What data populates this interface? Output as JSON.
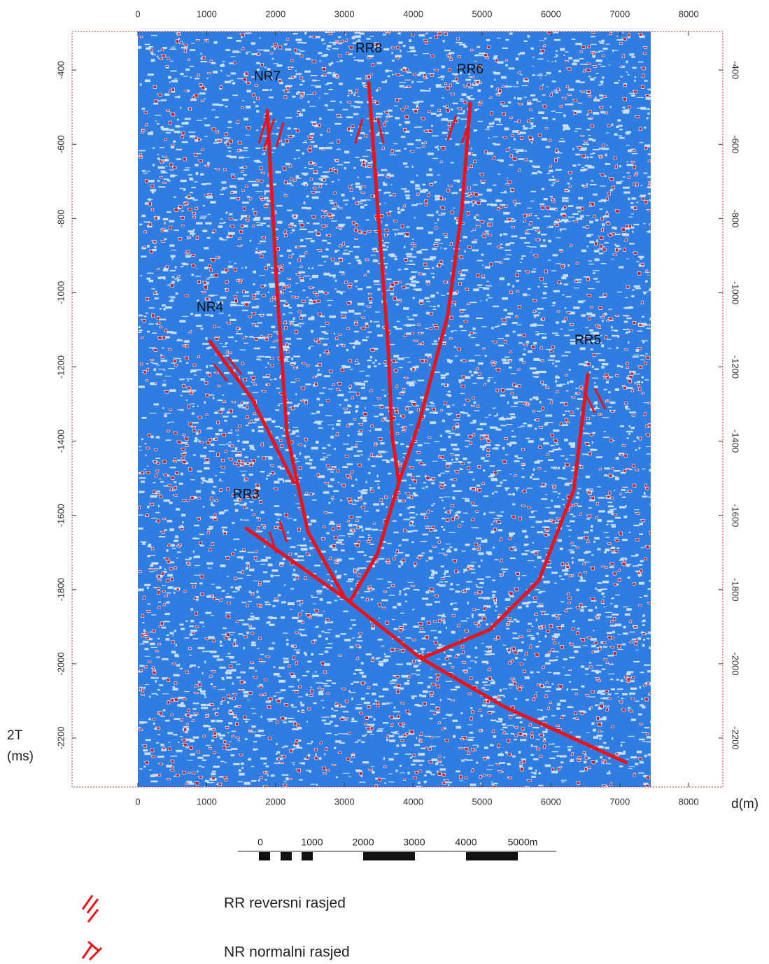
{
  "chart_data": {
    "type": "line",
    "x_label": "d(m)",
    "y_label_lines": [
      "2T",
      "(ms)"
    ],
    "xlim": [
      -955,
      8496
    ],
    "ylim": [
      -296,
      -2332
    ],
    "xticks": [
      0,
      1000,
      2000,
      3000,
      4000,
      5000,
      6000,
      7000,
      8000
    ],
    "yticks": [
      -400,
      -600,
      -800,
      -1000,
      -1200,
      -1400,
      -1600,
      -1800,
      -2000,
      -2200
    ],
    "series": [
      {
        "name": "NR7",
        "color": "#e8141c",
        "x": [
          1880,
          2012,
          2165,
          2470,
          3008
        ],
        "values": [
          -509,
          -966,
          -1380,
          -1644,
          -1823
        ]
      },
      {
        "name": "RR8",
        "color": "#e8141c",
        "x": [
          3354,
          3486,
          3638,
          3689,
          3791
        ],
        "values": [
          -434,
          -777,
          -1154,
          -1380,
          -1512
        ]
      },
      {
        "name": "RR6",
        "color": "#e8141c",
        "x": [
          4827,
          4705,
          4502,
          4096,
          3791,
          3486,
          3079
        ],
        "values": [
          -490,
          -777,
          -1060,
          -1343,
          -1512,
          -1701,
          -1833
        ]
      },
      {
        "name": "NR4",
        "color": "#e8141c",
        "x": [
          1047,
          1657,
          2266
        ],
        "values": [
          -1131,
          -1286,
          -1512
        ]
      },
      {
        "name": "RR3",
        "color": "#e8141c",
        "x": [
          1575,
          3008,
          4096,
          5315,
          7093
        ],
        "values": [
          -1635,
          -1823,
          -1983,
          -2115,
          -2266
        ]
      },
      {
        "name": "RR5",
        "color": "#e8141c",
        "x": [
          6535,
          6331,
          5823,
          5112,
          4146
        ],
        "values": [
          -1220,
          -1531,
          -1776,
          -1908,
          -1983
        ]
      }
    ],
    "scale_bar_labels": [
      "0",
      "1000",
      "2000",
      "3000",
      "4000",
      "5000m"
    ],
    "legend": [
      "RR reversni rasjed",
      "NR normalni rasjed"
    ]
  }
}
